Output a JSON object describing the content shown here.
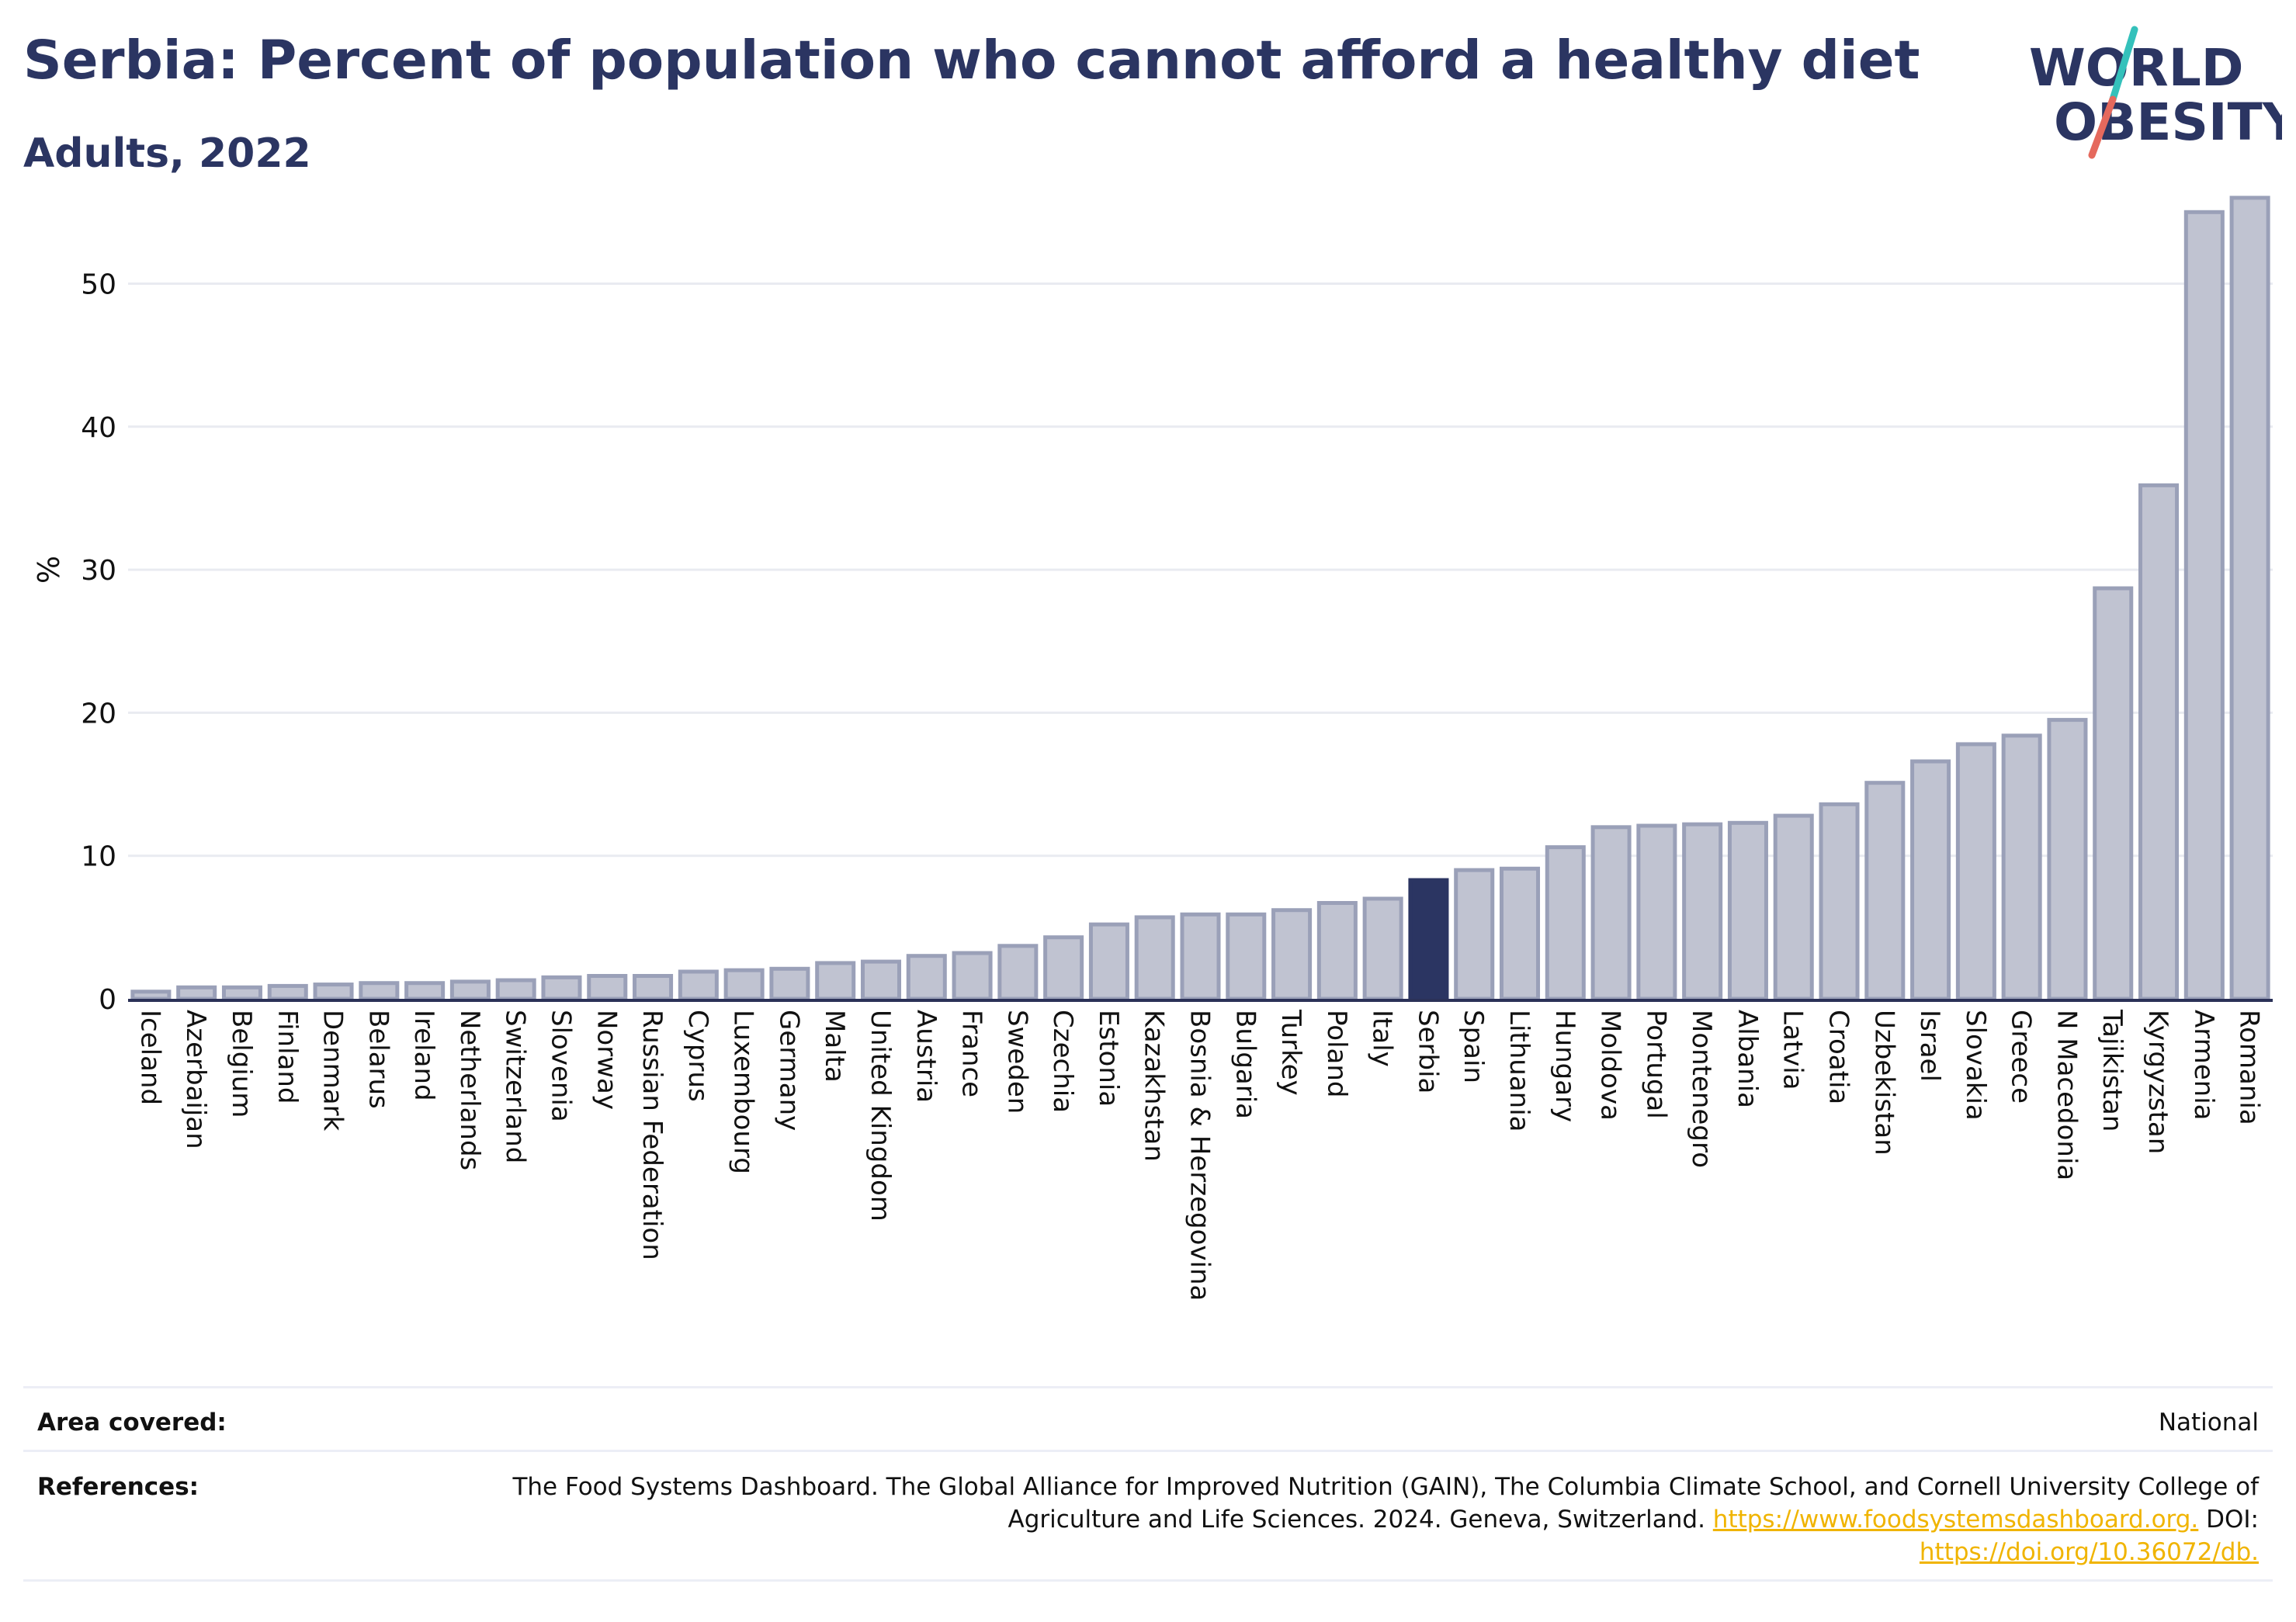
{
  "header": {
    "title": "Serbia: Percent of population who cannot afford a healthy diet",
    "subtitle": "Adults, 2022"
  },
  "logo": {
    "line1": "WORLD",
    "line2": "OBESITY",
    "text_color": "#2b3562",
    "slash_colors": [
      "#34c1bb",
      "#e5695d"
    ]
  },
  "colors": {
    "bar": "#c0c3d1",
    "bar_border": "#9aa0b8",
    "highlight": "#2b3562",
    "grid": "#e9ebf1",
    "axis": "#2b3157",
    "tick_text": "#111111"
  },
  "chart_data": {
    "type": "bar",
    "ylabel": "%",
    "ylim": [
      0,
      58
    ],
    "yticks": [
      0,
      10,
      20,
      30,
      40,
      50
    ],
    "grid": true,
    "highlight": "Serbia",
    "categories": [
      "Iceland",
      "Azerbaijan",
      "Belgium",
      "Finland",
      "Denmark",
      "Belarus",
      "Ireland",
      "Netherlands",
      "Switzerland",
      "Slovenia",
      "Norway",
      "Russian Federation",
      "Cyprus",
      "Luxembourg",
      "Germany",
      "Malta",
      "United Kingdom",
      "Austria",
      "France",
      "Sweden",
      "Czechia",
      "Estonia",
      "Kazakhstan",
      "Bosnia & Herzegovina",
      "Bulgaria",
      "Turkey",
      "Poland",
      "Italy",
      "Serbia",
      "Spain",
      "Lithuania",
      "Hungary",
      "Moldova",
      "Portugal",
      "Montenegro",
      "Albania",
      "Latvia",
      "Croatia",
      "Uzbekistan",
      "Israel",
      "Slovakia",
      "Greece",
      "N Macedonia",
      "Tajikistan",
      "Kyrgyzstan",
      "Armenia",
      "Romania"
    ],
    "values": [
      0.5,
      0.8,
      0.8,
      0.9,
      1.0,
      1.1,
      1.1,
      1.2,
      1.3,
      1.5,
      1.6,
      1.6,
      1.9,
      2.0,
      2.1,
      2.5,
      2.6,
      3.0,
      3.2,
      3.7,
      4.3,
      5.2,
      5.7,
      5.9,
      5.9,
      6.2,
      6.7,
      7.0,
      8.3,
      9.0,
      9.1,
      10.6,
      12.0,
      12.1,
      12.2,
      12.3,
      12.8,
      13.6,
      15.1,
      16.6,
      17.8,
      18.4,
      19.5,
      28.7,
      35.9,
      55.0,
      56.0
    ]
  },
  "footer": {
    "area_label": "Area covered:",
    "area_value": "National",
    "references_label": "References:",
    "references_text": "The Food Systems Dashboard. The Global Alliance for Improved Nutrition (GAIN), The Columbia Climate School, and Cornell University College of Agriculture and Life Sciences. 2024. Geneva, Switzerland. ",
    "references_link1": "https://www.foodsystemsdashboard.org.",
    "references_doi_label": " DOI: ",
    "references_link2": "https://doi.org/10.36072/db."
  }
}
